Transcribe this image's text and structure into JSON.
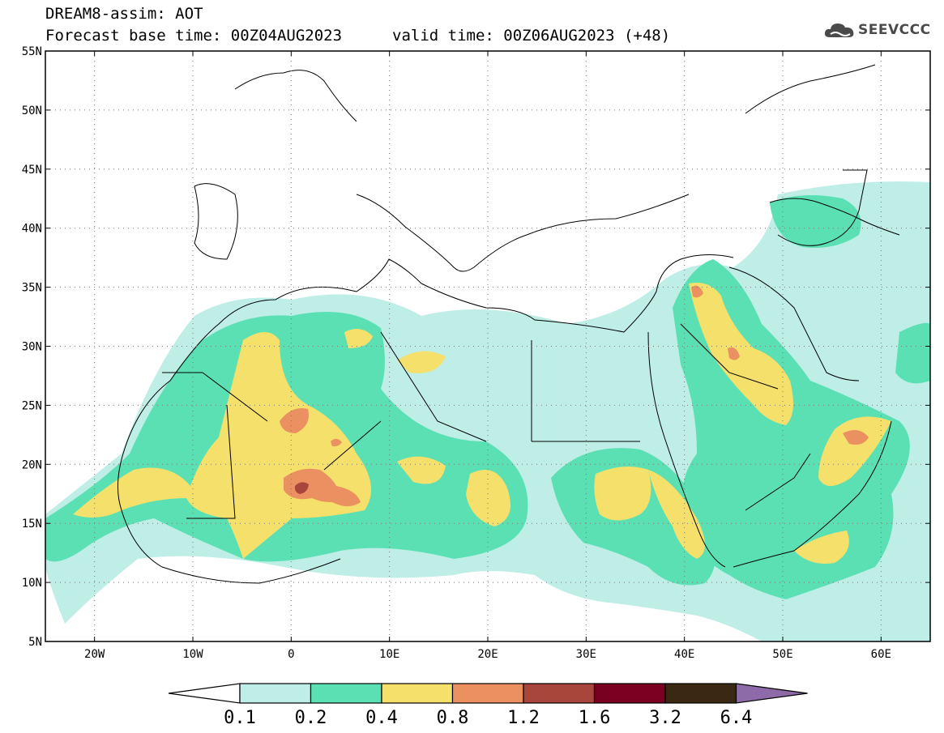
{
  "header": {
    "model_line": "DREAM8-assim: AOT",
    "base_time": "Forecast base time: 00Z04AUG2023",
    "valid_time": "valid time: 00Z06AUG2023 (+48)"
  },
  "logo": {
    "text": "SEEVCCC",
    "icon": "cloud-logo-icon",
    "color": "#4a4a4a"
  },
  "map": {
    "lon_range": [
      -25,
      65
    ],
    "lat_range": [
      5,
      55
    ],
    "lat_ticks": [
      "5N",
      "10N",
      "15N",
      "20N",
      "25N",
      "30N",
      "35N",
      "40N",
      "45N",
      "50N",
      "55N"
    ],
    "lat_tick_values": [
      5,
      10,
      15,
      20,
      25,
      30,
      35,
      40,
      45,
      50,
      55
    ],
    "lon_ticks": [
      "20W",
      "10W",
      "0",
      "10E",
      "20E",
      "30E",
      "40E",
      "50E",
      "60E"
    ],
    "lon_tick_values": [
      -20,
      -10,
      0,
      10,
      20,
      30,
      40,
      50,
      60
    ],
    "gridlines": "dotted"
  },
  "colorbar": {
    "labels": [
      "0.1",
      "0.2",
      "0.4",
      "0.8",
      "1.2",
      "1.6",
      "3.2",
      "6.4"
    ],
    "colors": [
      "#ffffff",
      "#bfeee6",
      "#5be0b4",
      "#f4e06b",
      "#eb9060",
      "#a8463c",
      "#7a0022",
      "#3b2812",
      "#8f6aa8"
    ]
  }
}
